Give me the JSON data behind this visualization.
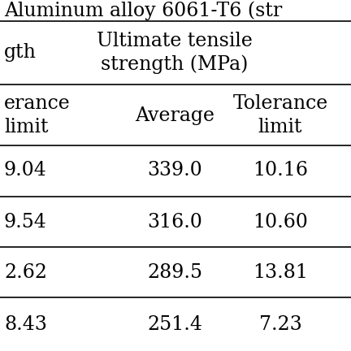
{
  "title": "Aluminum alloy 6061-T6 (str",
  "header1_left": "gth",
  "header1_center": "Ultimate tensile\nstrength (MPa)",
  "header2_left": "erance\nlimit",
  "header2_mid": "Average",
  "header2_right": "Tolerance\nlimit",
  "rows": [
    [
      ".04",
      "339.0",
      "10.16"
    ],
    [
      ".54",
      "316.0",
      "10.60"
    ],
    [
      "2.62",
      "289.5",
      "13.81"
    ],
    [
      "8.43",
      "251.4",
      "7.23"
    ]
  ],
  "left_prefix": [
    "9",
    "9",
    "",
    ""
  ],
  "bg_color": "#ffffff",
  "text_color": "#000000",
  "font_size": 17,
  "line_color": "#000000",
  "line_width": 1.2
}
